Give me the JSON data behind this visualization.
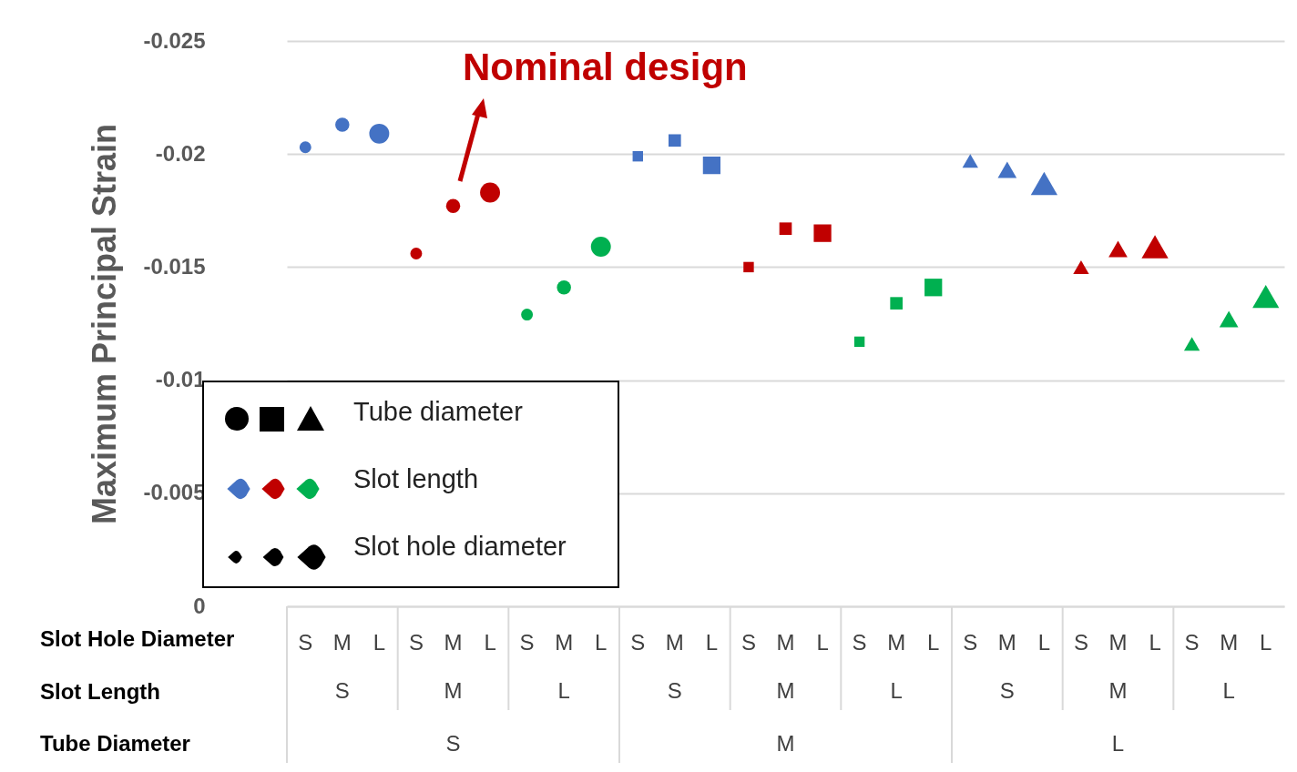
{
  "chart_data": {
    "type": "bubble",
    "ylabel": "Maximum Principal Strain",
    "ylim": [
      0,
      -0.025
    ],
    "yticks": [
      -0.025,
      -0.02,
      -0.015,
      -0.01,
      -0.005,
      0
    ],
    "grid": "y",
    "categories": [
      "S",
      "M",
      "L",
      "S",
      "M",
      "L",
      "S",
      "M",
      "L",
      "S",
      "M",
      "L",
      "S",
      "M",
      "L",
      "S",
      "M",
      "L",
      "S",
      "M",
      "L",
      "S",
      "M",
      "L",
      "S",
      "M",
      "L"
    ],
    "annotations": [
      "Nominal design",
      "Slot Hole Diameter",
      "Slot Length",
      "Tube Diameter",
      "S",
      "M",
      "L",
      "S",
      "M",
      "L",
      "S",
      "M",
      "L",
      "S",
      "M",
      "L",
      "Tube diameter",
      "Slot length",
      "Slot hole diameter"
    ],
    "series": [
      {
        "marker": "circle",
        "values": [
          -0.0203,
          -0.0213,
          -0.0209,
          -0.0156,
          -0.0177,
          -0.0183,
          -0.0129,
          -0.0141,
          -0.0159,
          null,
          null,
          null,
          null,
          null,
          null,
          null,
          null,
          null,
          null,
          null,
          null,
          null,
          null,
          null,
          null,
          null,
          null
        ],
        "colors": [
          "#4472c4",
          "#4472c4",
          "#4472c4",
          "#c00000",
          "#c00000",
          "#c00000",
          "#00b050",
          "#00b050",
          "#00b050",
          null,
          null,
          null,
          null,
          null,
          null,
          null,
          null,
          null,
          null,
          null,
          null,
          null,
          null,
          null,
          null,
          null,
          null
        ],
        "sizes": [
          0.35,
          0.5,
          1,
          0.35,
          0.5,
          1,
          0.35,
          0.5,
          1,
          null,
          null,
          null,
          null,
          null,
          null,
          null,
          null,
          null,
          null,
          null,
          null,
          null,
          null,
          null,
          null,
          null,
          null
        ]
      },
      {
        "marker": "square",
        "values": [
          null,
          null,
          null,
          null,
          null,
          null,
          null,
          null,
          null,
          -0.0199,
          -0.0206,
          -0.0195,
          -0.015,
          -0.0167,
          -0.0165,
          -0.0117,
          -0.0134,
          -0.0141,
          null,
          null,
          null,
          null,
          null,
          null,
          null,
          null,
          null
        ],
        "colors": [
          null,
          null,
          null,
          null,
          null,
          null,
          null,
          null,
          null,
          "#4472c4",
          "#4472c4",
          "#4472c4",
          "#c00000",
          "#c00000",
          "#c00000",
          "#00b050",
          "#00b050",
          "#00b050",
          null,
          null,
          null,
          null,
          null,
          null,
          null,
          null,
          null
        ],
        "sizes": [
          null,
          null,
          null,
          null,
          null,
          null,
          null,
          null,
          null,
          0.35,
          0.5,
          1,
          0.35,
          0.5,
          1,
          0.35,
          0.5,
          1,
          null,
          null,
          null,
          null,
          null,
          null,
          null,
          null,
          null
        ]
      },
      {
        "marker": "triangle",
        "values": [
          null,
          null,
          null,
          null,
          null,
          null,
          null,
          null,
          null,
          null,
          null,
          null,
          null,
          null,
          null,
          null,
          null,
          null,
          -0.0197,
          -0.0193,
          -0.0187,
          -0.015,
          -0.0158,
          -0.0159,
          -0.0116,
          -0.0127,
          -0.0137
        ],
        "colors": [
          null,
          null,
          null,
          null,
          null,
          null,
          null,
          null,
          null,
          null,
          null,
          null,
          null,
          null,
          null,
          null,
          null,
          null,
          "#4472c4",
          "#4472c4",
          "#4472c4",
          "#c00000",
          "#c00000",
          "#c00000",
          "#00b050",
          "#00b050",
          "#00b050"
        ],
        "sizes": [
          null,
          null,
          null,
          null,
          null,
          null,
          null,
          null,
          null,
          null,
          null,
          null,
          null,
          null,
          null,
          null,
          null,
          null,
          0.35,
          0.5,
          1,
          0.35,
          0.5,
          1,
          0.35,
          0.5,
          1
        ]
      }
    ]
  }
}
